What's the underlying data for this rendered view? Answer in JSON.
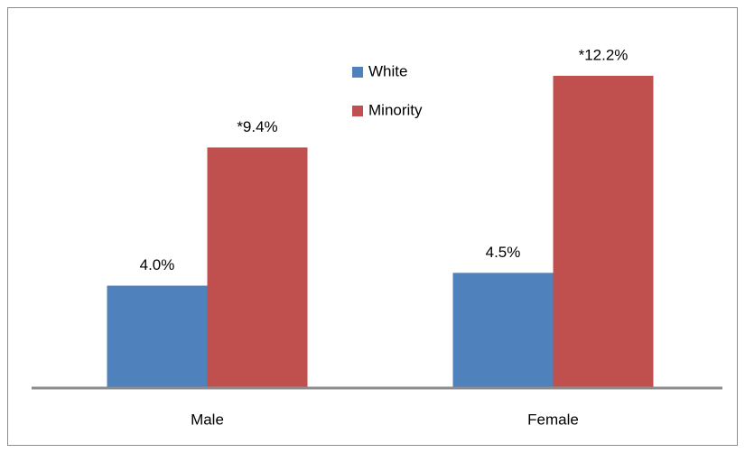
{
  "chart_data": {
    "type": "bar",
    "categories": [
      "Male",
      "Female"
    ],
    "series": [
      {
        "name": "White",
        "color": "#4f81bd",
        "values": [
          4.0,
          4.5
        ],
        "value_labels": [
          "4.0%",
          "4.5%"
        ]
      },
      {
        "name": "Minority",
        "color": "#c0504d",
        "values": [
          9.4,
          12.2
        ],
        "value_labels": [
          "*9.4%",
          "*12.2%"
        ]
      }
    ]
  }
}
